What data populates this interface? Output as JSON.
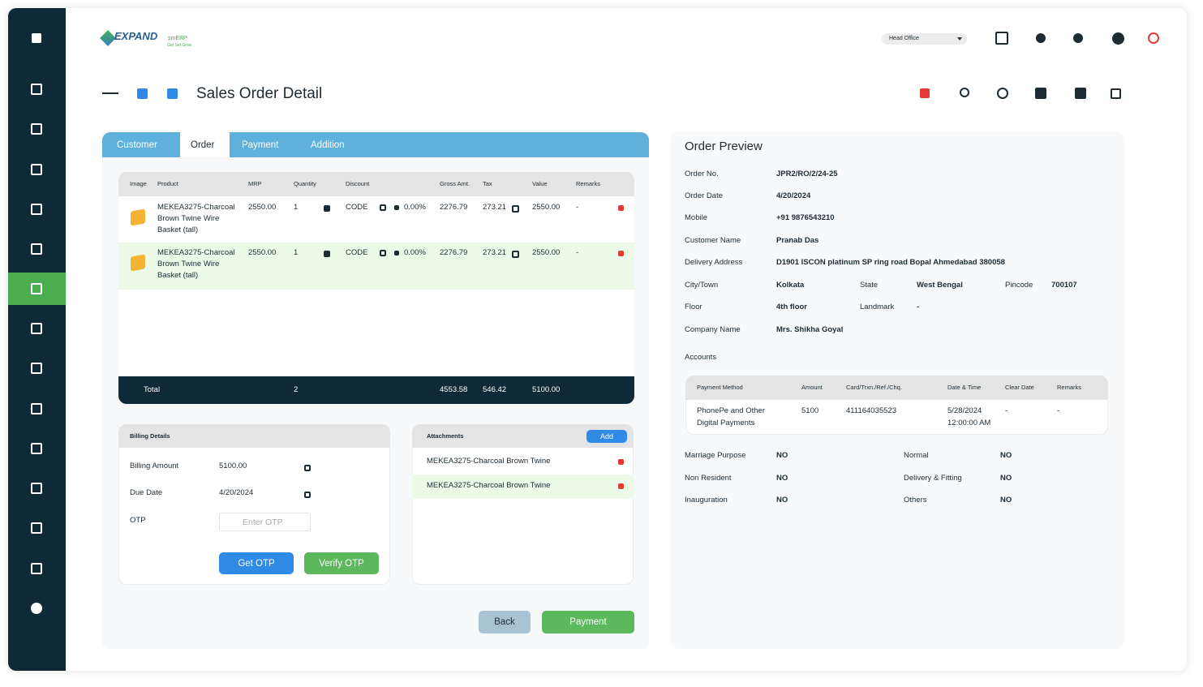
{
  "header": {
    "brand": "EXPAND",
    "brand_suffix": "smERP",
    "tagline": "Get Set Grow",
    "branch": "Head Office"
  },
  "page": {
    "title": "Sales Order Detail"
  },
  "tabs": [
    "Customer",
    "Order",
    "Payment",
    "Addition"
  ],
  "active_tab": 1,
  "items_table": {
    "headers": [
      "Image",
      "Product",
      "MRP",
      "Quantity",
      "Discount",
      "Gross Amt.",
      "Tax",
      "Value",
      "Remarks"
    ],
    "rows": [
      {
        "product": "MEKEA3275-Charcoal Brown Twine Wire Basket (tall)",
        "mrp": "2550.00",
        "quantity": "1",
        "code": "CODE",
        "discount": "0.00%",
        "gross": "2276.79",
        "tax": "273.21",
        "value": "2550.00",
        "remarks": "-"
      },
      {
        "product": "MEKEA3275-Charcoal Brown Twine Wire Basket (tall)",
        "mrp": "2550.00",
        "quantity": "1",
        "code": "CODE",
        "discount": "0.00%",
        "gross": "2276.79",
        "tax": "273.21",
        "value": "2550.00",
        "remarks": "-"
      }
    ],
    "total": {
      "label": "Total",
      "quantity": "2",
      "gross": "4553.58",
      "tax": "546.42",
      "value": "5100.00"
    }
  },
  "billing": {
    "title": "Billing Details",
    "fields": [
      {
        "label": "Billing Amount",
        "value": "5100.00"
      },
      {
        "label": "Due Date",
        "value": "4/20/2024"
      }
    ],
    "otp_label": "OTP",
    "otp_placeholder": "Enter OTP",
    "get_otp": "Get OTP",
    "verify_otp": "Verify OTP"
  },
  "attachments": {
    "title": "Attachments",
    "add": "Add",
    "items": [
      "MEKEA3275-Charcoal Brown Twine",
      "MEKEA3275-Charcoal Brown Twine"
    ]
  },
  "actions": {
    "back": "Back",
    "payment": "Payment"
  },
  "preview": {
    "title": "Order Preview",
    "rows": [
      [
        {
          "label": "Order No.",
          "value": "JPR2/RO/2/24-25"
        }
      ],
      [
        {
          "label": "Order Date",
          "value": "4/20/2024"
        }
      ],
      [
        {
          "label": "Mobile",
          "value": "+91 9876543210"
        }
      ],
      [
        {
          "label": "Customer Name",
          "value": "Pranab Das"
        }
      ],
      [
        {
          "label": "Delivery Address",
          "value": "D1901 ISCON platinum SP ring road Bopal Ahmedabad 380058"
        }
      ],
      [
        {
          "label": "City/Town",
          "value": "Kolkata"
        },
        {
          "label": "State",
          "value": "West Bengal"
        },
        {
          "label": "Pincode",
          "value": "700107"
        }
      ],
      [
        {
          "label": "Floor",
          "value": "4th floor"
        },
        {
          "label": "Landmark",
          "value": "-"
        }
      ],
      [
        {
          "label": "Company Name",
          "value": "Mrs. Shikha Goyal"
        }
      ]
    ],
    "accounts_label": "Accounts",
    "payments": {
      "headers": [
        "Payment Method",
        "Amount",
        "Card/Trxn./Ref./Chq.",
        "Date & Time",
        "Clear Date",
        "Remarks"
      ],
      "rows": [
        [
          "PhonePe and Other Digital Payments",
          "5100",
          "411164035523",
          "5/28/2024 12:00:00 AM",
          "-",
          "-"
        ]
      ]
    },
    "flags": [
      [
        {
          "label": "Marriage Purpose",
          "value": "NO"
        },
        {
          "label": "Normal",
          "value": "NO"
        }
      ],
      [
        {
          "label": "Non Resident",
          "value": "NO"
        },
        {
          "label": "Delivery & Fitting",
          "value": "NO"
        }
      ],
      [
        {
          "label": "Inauguration",
          "value": "NO"
        },
        {
          "label": "Others",
          "value": "NO"
        }
      ]
    ]
  }
}
